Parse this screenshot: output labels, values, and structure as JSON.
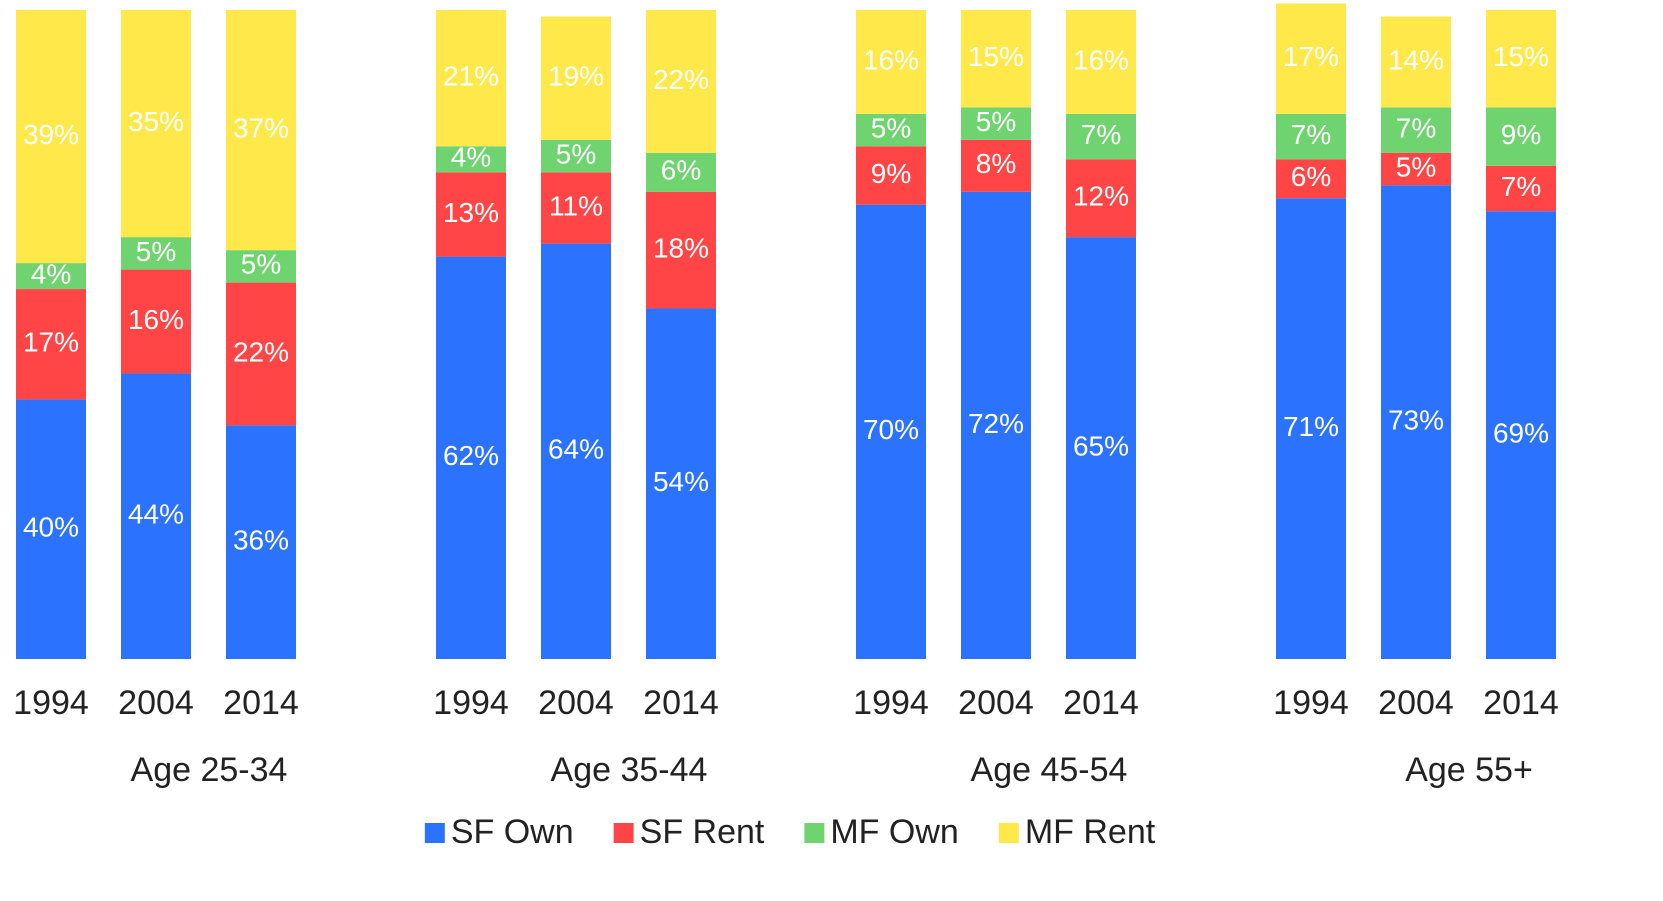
{
  "chart_data": {
    "type": "stacked-bar",
    "groups": [
      "Age 25-34",
      "Age 35-44",
      "Age 45-54",
      "Age 55+"
    ],
    "categories": [
      "1994",
      "2004",
      "2014",
      "1994",
      "2004",
      "2014",
      "1994",
      "2004",
      "2014",
      "1994",
      "2004",
      "2014"
    ],
    "ylim": [
      0,
      100
    ],
    "series": [
      {
        "name": "SF Own",
        "color": "#2b72ff",
        "values": [
          40,
          44,
          36,
          62,
          64,
          54,
          70,
          72,
          65,
          71,
          73,
          69
        ],
        "value_labels": [
          "40%",
          "44%",
          "36%",
          "62%",
          "64%",
          "54%",
          "70%",
          "72%",
          "65%",
          "71%",
          "73%",
          "69%"
        ]
      },
      {
        "name": "SF Rent",
        "color": "#ff4545",
        "values": [
          17,
          16,
          22,
          13,
          11,
          18,
          9,
          8,
          12,
          6,
          5,
          7
        ],
        "value_labels": [
          "17%",
          "16%",
          "22%",
          "13%",
          "11%",
          "18%",
          "9%",
          "8%",
          "12%",
          "6%",
          "5%",
          "7%"
        ]
      },
      {
        "name": "MF Own",
        "color": "#6fd370",
        "values": [
          4,
          5,
          5,
          4,
          5,
          6,
          5,
          5,
          7,
          7,
          7,
          9
        ],
        "value_labels": [
          "4%",
          "5%",
          "5%",
          "4%",
          "5%",
          "6%",
          "5%",
          "5%",
          "7%",
          "7%",
          "7%",
          "9%"
        ]
      },
      {
        "name": "MF Rent",
        "color": "#ffe94a",
        "values": [
          39,
          35,
          37,
          21,
          19,
          22,
          16,
          15,
          16,
          17,
          14,
          15
        ],
        "value_labels": [
          "39%",
          "35%",
          "37%",
          "21%",
          "19%",
          "22%",
          "16%",
          "15%",
          "16%",
          "17%",
          "14%",
          "15%"
        ]
      }
    ],
    "legend": "bottom"
  }
}
